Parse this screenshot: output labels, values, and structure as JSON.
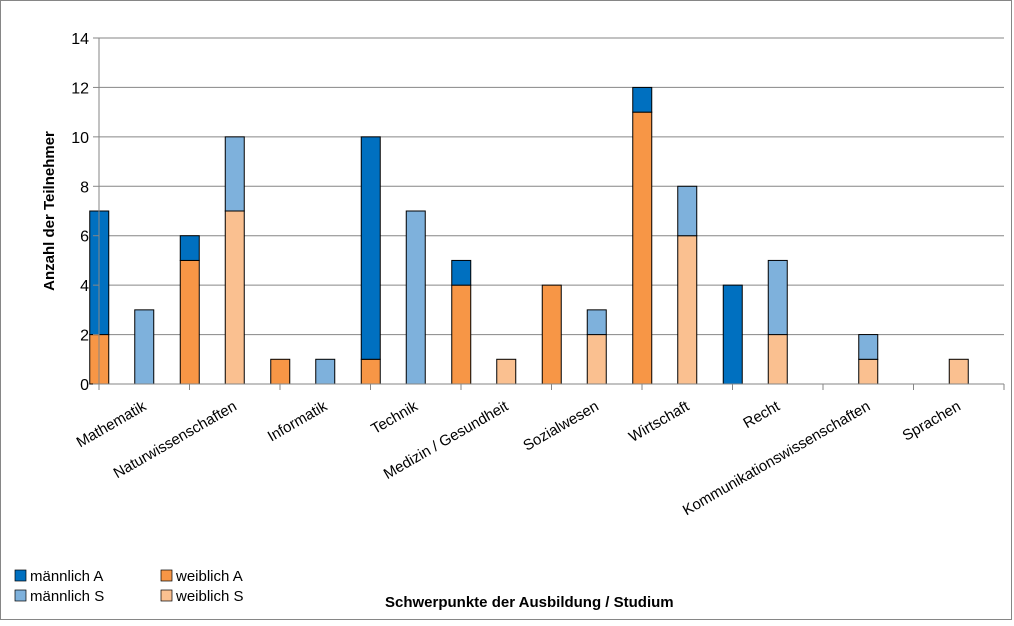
{
  "chart_data": {
    "type": "bar",
    "stacked": true,
    "categories": [
      "Mathematik",
      "Naturwissenschaften",
      "Informatik",
      "Technik",
      "Medizin / Gesundheit",
      "Sozialwesen",
      "Wirtschaft",
      "Recht",
      "Kommunikationswissenschaften",
      "Sprachen"
    ],
    "groups": [
      {
        "stack": "A",
        "series": [
          {
            "name": "weiblich A",
            "color": "#f79646",
            "values": [
              2,
              5,
              1,
              1,
              4,
              4,
              11,
              0,
              0,
              0
            ]
          },
          {
            "name": "männlich A",
            "color": "#0070c0",
            "values": [
              5,
              1,
              0,
              9,
              1,
              0,
              1,
              4,
              0,
              0
            ]
          }
        ]
      },
      {
        "stack": "S",
        "series": [
          {
            "name": "weiblich S",
            "color": "#fac090",
            "values": [
              0,
              7,
              0,
              0,
              1,
              2,
              6,
              2,
              1,
              1
            ]
          },
          {
            "name": "männlich S",
            "color": "#7eb1dc",
            "values": [
              3,
              3,
              1,
              7,
              0,
              1,
              2,
              3,
              1,
              0
            ]
          }
        ]
      }
    ],
    "ylim": [
      0,
      14
    ],
    "yticks": [
      "0",
      "2",
      "4",
      "6",
      "8",
      "10",
      "12",
      "14"
    ],
    "ylabel": "Anzahl der Teilnehmer",
    "xlabel": "Schwerpunkte der Ausbildung / Studium",
    "grid": true,
    "legend": {
      "placement": "bottom-left",
      "items": [
        {
          "label": "männlich A",
          "color": "#0070c0"
        },
        {
          "label": "weiblich A",
          "color": "#f79646"
        },
        {
          "label": "männlich S",
          "color": "#7eb1dc"
        },
        {
          "label": "weiblich S",
          "color": "#fac090"
        }
      ]
    }
  }
}
